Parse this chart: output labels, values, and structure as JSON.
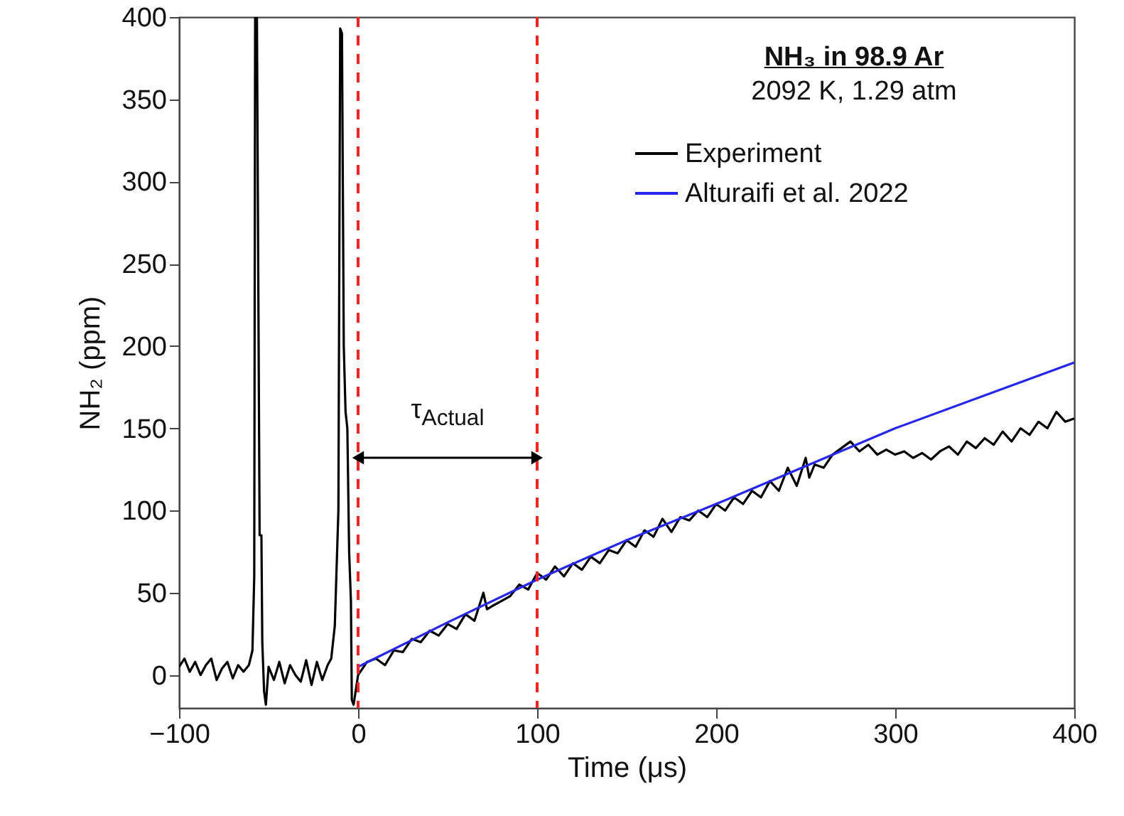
{
  "chart_data": {
    "type": "line",
    "title": "NH₃ in 98.9 Ar",
    "subtitle": "2092 K, 1.29 atm",
    "xlabel": "Time (μs)",
    "ylabel": "NH₂ (ppm)",
    "xlim": [
      -100,
      400
    ],
    "xticks": [
      -100,
      0,
      100,
      200,
      300,
      400
    ],
    "ylim": [
      -20,
      400
    ],
    "yticks": [
      0,
      50,
      100,
      150,
      200,
      250,
      300,
      350,
      400
    ],
    "grid": false,
    "legend": "top right",
    "line_style": "solid",
    "marker": "none",
    "series": [
      {
        "name": "Experiment",
        "color": "#000000",
        "x": [
          -100,
          -97,
          -94,
          -91,
          -88,
          -85,
          -82,
          -79,
          -76,
          -73,
          -70,
          -67,
          -64,
          -61,
          -59,
          -58,
          -57.5,
          -56.5,
          -55,
          -54,
          -53.5,
          -52.5,
          -51.5,
          -50,
          -47,
          -44,
          -41,
          -38,
          -35,
          -32,
          -29,
          -26,
          -23,
          -20,
          -17,
          -15,
          -13,
          -11,
          -10,
          -9,
          -8,
          -7,
          -6,
          -5,
          -4,
          -3.5,
          -2.5,
          0,
          5,
          10,
          15,
          20,
          25,
          30,
          35,
          40,
          45,
          50,
          55,
          60,
          65,
          70,
          72,
          75,
          80,
          85,
          90,
          95,
          100,
          105,
          110,
          115,
          120,
          125,
          130,
          135,
          140,
          145,
          150,
          155,
          160,
          165,
          170,
          175,
          180,
          185,
          190,
          195,
          200,
          205,
          210,
          215,
          220,
          225,
          230,
          235,
          240,
          245,
          250,
          252,
          255,
          260,
          265,
          270,
          275,
          280,
          285,
          290,
          295,
          300,
          305,
          310,
          315,
          320,
          325,
          330,
          335,
          340,
          345,
          350,
          355,
          360,
          365,
          370,
          375,
          380,
          385,
          390,
          395,
          400
        ],
        "values": [
          5,
          10,
          2,
          8,
          0,
          6,
          10,
          -3,
          4,
          8,
          -2,
          6,
          2,
          6,
          15,
          60,
          400,
          400,
          85,
          85,
          20,
          -10,
          -18,
          5,
          -3,
          8,
          -5,
          6,
          0,
          -4,
          9,
          -6,
          8,
          -3,
          6,
          10,
          30,
          100,
          393,
          390,
          200,
          160,
          150,
          75,
          45,
          -15,
          -18,
          0,
          8,
          10,
          6,
          15,
          14,
          22,
          20,
          27,
          24,
          31,
          28,
          37,
          33,
          50,
          40,
          42,
          45,
          48,
          55,
          52,
          62,
          58,
          66,
          60,
          68,
          64,
          72,
          68,
          76,
          74,
          82,
          78,
          88,
          84,
          95,
          87,
          96,
          94,
          100,
          96,
          104,
          100,
          108,
          104,
          112,
          108,
          118,
          112,
          126,
          115,
          132,
          120,
          128,
          126,
          134,
          138,
          142,
          136,
          140,
          134,
          137,
          134,
          136,
          132,
          135,
          131,
          136,
          139,
          134,
          142,
          138,
          144,
          140,
          148,
          142,
          150,
          146,
          154,
          150,
          160,
          154,
          156
        ]
      },
      {
        "name": "Alturaifi et al. 2022",
        "color": "#2626f2",
        "x": [
          0,
          50,
          100,
          150,
          200,
          250,
          300,
          350,
          400
        ],
        "values": [
          5,
          32,
          58,
          82,
          104,
          127,
          150,
          170,
          190
        ]
      }
    ],
    "ref_lines": [
      {
        "axis": "x",
        "value": 0,
        "color": "#ff2020",
        "line_style": "dashed"
      },
      {
        "axis": "x",
        "value": 100,
        "color": "#ff2020",
        "line_style": "dashed"
      }
    ],
    "annotations": [
      "τ$_{Actual}$"
    ]
  }
}
